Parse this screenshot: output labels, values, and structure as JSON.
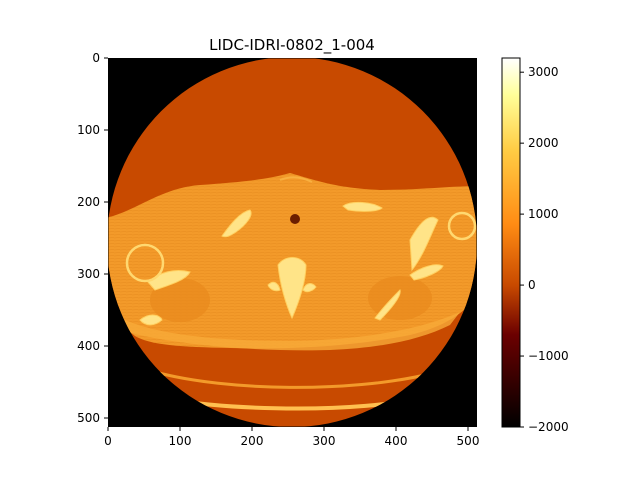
{
  "figure": {
    "title": "LIDC-IDRI-0802_1-004"
  },
  "image": {
    "description_type": "axial chest CT slice rendered with afmhot colormap",
    "x_ticks": [
      "0",
      "100",
      "200",
      "300",
      "400",
      "500"
    ],
    "y_ticks": [
      "0",
      "100",
      "200",
      "300",
      "400",
      "500"
    ],
    "x_range": [
      0,
      512
    ],
    "y_range": [
      0,
      512
    ]
  },
  "colorbar": {
    "colormap": "afmhot",
    "range": [
      -2000,
      3200
    ],
    "ticks": [
      "3000",
      "2000",
      "1000",
      "0",
      "−1000",
      "−2000"
    ],
    "tick_values": [
      3000,
      2000,
      1000,
      0,
      -1000,
      -2000
    ]
  },
  "colors": {
    "background_outside_fov": "#000000",
    "air_inside_fov": "#c84a00",
    "soft_tissue": "#f39a2a",
    "bone": "#ffe488"
  }
}
